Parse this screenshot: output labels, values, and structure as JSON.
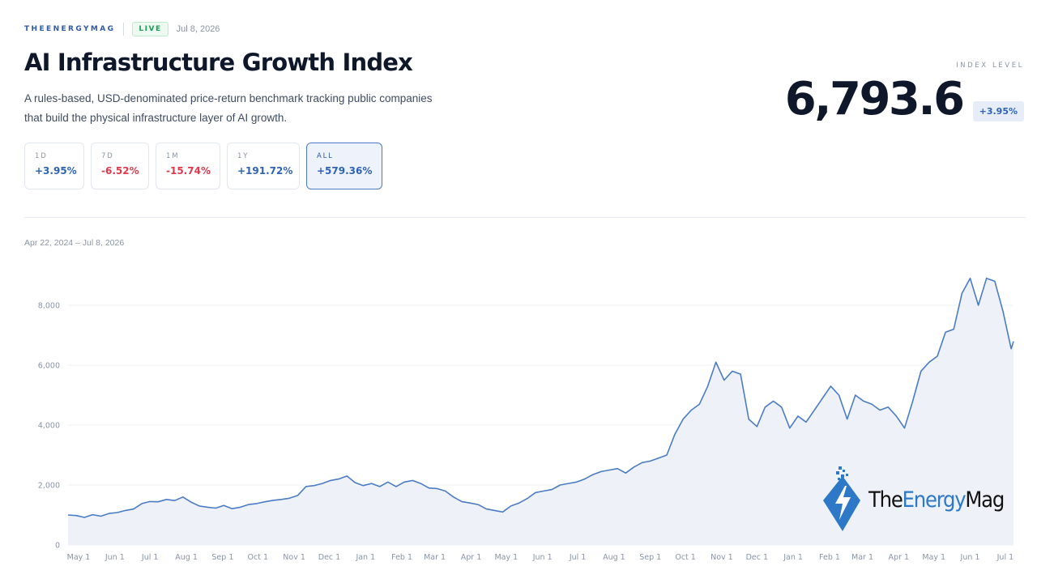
{
  "header": {
    "brand": "THEENERGYMAG",
    "live_badge": "LIVE",
    "date": "Jul 8, 2026"
  },
  "title": "AI Infrastructure Growth Index",
  "subtitle_line1": "A rules-based, USD-denominated price-return benchmark tracking public companies",
  "subtitle_line2": "that build the physical infrastructure layer of AI growth.",
  "index": {
    "label": "INDEX LEVEL",
    "value": "6,793.6",
    "change": "+3.95%"
  },
  "periods": [
    {
      "label": "1D",
      "value": "+3.95%",
      "direction": "up",
      "active": false
    },
    {
      "label": "7D",
      "value": "-6.52%",
      "direction": "down",
      "active": false
    },
    {
      "label": "1M",
      "value": "-15.74%",
      "direction": "down",
      "active": false
    },
    {
      "label": "1Y",
      "value": "+191.72%",
      "direction": "up",
      "active": false
    },
    {
      "label": "ALL",
      "value": "+579.36%",
      "direction": "up",
      "active": true
    }
  ],
  "date_range": "Apr 22, 2024 – Jul 8, 2026",
  "watermark": {
    "part1": "The",
    "part2": "Energy",
    "part3": "Mag",
    "icon": "lightning-bolt-icon"
  },
  "colors": {
    "line": "#4a7cc4",
    "fill": "#eef2f8",
    "positive": "#2f63b5",
    "negative": "#dc3a4c",
    "brand": "#2f5aa8"
  },
  "chart_data": {
    "type": "area",
    "title": "",
    "xlabel": "",
    "ylabel": "",
    "ylim": [
      0,
      9000
    ],
    "y_ticks": [
      0,
      2000,
      4000,
      6000,
      8000
    ],
    "y_tick_labels": [
      "0",
      "2,000",
      "4,000",
      "6,000",
      "8,000"
    ],
    "x_tick_labels": [
      "May 1",
      "Jun 1",
      "Jul 1",
      "Aug 1",
      "Sep 1",
      "Oct 1",
      "Nov 1",
      "Dec 1",
      "Jan 1",
      "Feb 1",
      "Mar 1",
      "Apr 1",
      "May 1",
      "Jun 1",
      "Jul 1",
      "Aug 1",
      "Sep 1",
      "Oct 1",
      "Nov 1",
      "Dec 1",
      "Jan 1",
      "Feb 1",
      "Mar 1",
      "Apr 1",
      "May 1",
      "Jun 1",
      "Jul 1"
    ],
    "x_tick_dates": [
      "2024-05-01",
      "2024-06-01",
      "2024-07-01",
      "2024-08-01",
      "2024-09-01",
      "2024-10-01",
      "2024-11-01",
      "2024-12-01",
      "2025-01-01",
      "2025-02-01",
      "2025-03-01",
      "2025-04-01",
      "2025-05-01",
      "2025-06-01",
      "2025-07-01",
      "2025-08-01",
      "2025-09-01",
      "2025-10-01",
      "2025-11-01",
      "2025-12-01",
      "2026-01-01",
      "2026-02-01",
      "2026-03-01",
      "2026-04-01",
      "2026-05-01",
      "2026-06-01",
      "2026-07-01"
    ],
    "grid": true,
    "legend": "none",
    "series": [
      {
        "points": [
          [
            "2024-04-22",
            1000
          ],
          [
            "2024-04-29",
            980
          ],
          [
            "2024-05-06",
            920
          ],
          [
            "2024-05-13",
            1010
          ],
          [
            "2024-05-20",
            960
          ],
          [
            "2024-05-27",
            1050
          ],
          [
            "2024-06-03",
            1080
          ],
          [
            "2024-06-10",
            1150
          ],
          [
            "2024-06-17",
            1200
          ],
          [
            "2024-06-24",
            1380
          ],
          [
            "2024-07-01",
            1450
          ],
          [
            "2024-07-08",
            1440
          ],
          [
            "2024-07-15",
            1520
          ],
          [
            "2024-07-22",
            1480
          ],
          [
            "2024-07-29",
            1600
          ],
          [
            "2024-08-05",
            1430
          ],
          [
            "2024-08-12",
            1300
          ],
          [
            "2024-08-19",
            1260
          ],
          [
            "2024-08-26",
            1230
          ],
          [
            "2024-09-02",
            1320
          ],
          [
            "2024-09-09",
            1210
          ],
          [
            "2024-09-16",
            1260
          ],
          [
            "2024-09-23",
            1350
          ],
          [
            "2024-09-30",
            1380
          ],
          [
            "2024-10-07",
            1440
          ],
          [
            "2024-10-14",
            1490
          ],
          [
            "2024-10-21",
            1520
          ],
          [
            "2024-10-28",
            1560
          ],
          [
            "2024-11-04",
            1650
          ],
          [
            "2024-11-11",
            1950
          ],
          [
            "2024-11-18",
            1980
          ],
          [
            "2024-11-25",
            2050
          ],
          [
            "2024-12-02",
            2150
          ],
          [
            "2024-12-09",
            2200
          ],
          [
            "2024-12-16",
            2300
          ],
          [
            "2024-12-23",
            2080
          ],
          [
            "2024-12-30",
            1980
          ],
          [
            "2025-01-06",
            2050
          ],
          [
            "2025-01-13",
            1950
          ],
          [
            "2025-01-20",
            2100
          ],
          [
            "2025-01-27",
            1950
          ],
          [
            "2025-02-03",
            2100
          ],
          [
            "2025-02-10",
            2150
          ],
          [
            "2025-02-17",
            2050
          ],
          [
            "2025-02-24",
            1900
          ],
          [
            "2025-03-03",
            1880
          ],
          [
            "2025-03-10",
            1800
          ],
          [
            "2025-03-17",
            1600
          ],
          [
            "2025-03-24",
            1450
          ],
          [
            "2025-03-31",
            1400
          ],
          [
            "2025-04-07",
            1350
          ],
          [
            "2025-04-14",
            1200
          ],
          [
            "2025-04-21",
            1150
          ],
          [
            "2025-04-28",
            1100
          ],
          [
            "2025-05-05",
            1300
          ],
          [
            "2025-05-12",
            1400
          ],
          [
            "2025-05-19",
            1550
          ],
          [
            "2025-05-26",
            1750
          ],
          [
            "2025-06-02",
            1800
          ],
          [
            "2025-06-09",
            1850
          ],
          [
            "2025-06-16",
            2000
          ],
          [
            "2025-06-23",
            2050
          ],
          [
            "2025-06-30",
            2100
          ],
          [
            "2025-07-07",
            2200
          ],
          [
            "2025-07-14",
            2350
          ],
          [
            "2025-07-21",
            2450
          ],
          [
            "2025-07-28",
            2500
          ],
          [
            "2025-08-04",
            2550
          ],
          [
            "2025-08-11",
            2400
          ],
          [
            "2025-08-18",
            2600
          ],
          [
            "2025-08-25",
            2750
          ],
          [
            "2025-09-01",
            2800
          ],
          [
            "2025-09-08",
            2900
          ],
          [
            "2025-09-15",
            3000
          ],
          [
            "2025-09-22",
            3700
          ],
          [
            "2025-09-29",
            4200
          ],
          [
            "2025-10-06",
            4500
          ],
          [
            "2025-10-13",
            4700
          ],
          [
            "2025-10-20",
            5300
          ],
          [
            "2025-10-27",
            6100
          ],
          [
            "2025-11-03",
            5500
          ],
          [
            "2025-11-10",
            5800
          ],
          [
            "2025-11-17",
            5700
          ],
          [
            "2025-11-24",
            4200
          ],
          [
            "2025-12-01",
            3950
          ],
          [
            "2025-12-08",
            4600
          ],
          [
            "2025-12-15",
            4800
          ],
          [
            "2025-12-22",
            4600
          ],
          [
            "2025-12-29",
            3900
          ],
          [
            "2026-01-05",
            4300
          ],
          [
            "2026-01-12",
            4100
          ],
          [
            "2026-01-19",
            4500
          ],
          [
            "2026-01-26",
            4900
          ],
          [
            "2026-02-02",
            5300
          ],
          [
            "2026-02-09",
            5000
          ],
          [
            "2026-02-16",
            4200
          ],
          [
            "2026-02-23",
            5000
          ],
          [
            "2026-03-02",
            4800
          ],
          [
            "2026-03-09",
            4700
          ],
          [
            "2026-03-16",
            4500
          ],
          [
            "2026-03-23",
            4600
          ],
          [
            "2026-03-30",
            4300
          ],
          [
            "2026-04-06",
            3900
          ],
          [
            "2026-04-13",
            4800
          ],
          [
            "2026-04-20",
            5800
          ],
          [
            "2026-04-27",
            6100
          ],
          [
            "2026-05-04",
            6300
          ],
          [
            "2026-05-11",
            7100
          ],
          [
            "2026-05-18",
            7200
          ],
          [
            "2026-05-25",
            8400
          ],
          [
            "2026-06-01",
            8900
          ],
          [
            "2026-06-08",
            8000
          ],
          [
            "2026-06-15",
            8900
          ],
          [
            "2026-06-22",
            8800
          ],
          [
            "2026-06-29",
            7800
          ],
          [
            "2026-07-06",
            6550
          ],
          [
            "2026-07-08",
            6793.6
          ]
        ]
      }
    ]
  }
}
